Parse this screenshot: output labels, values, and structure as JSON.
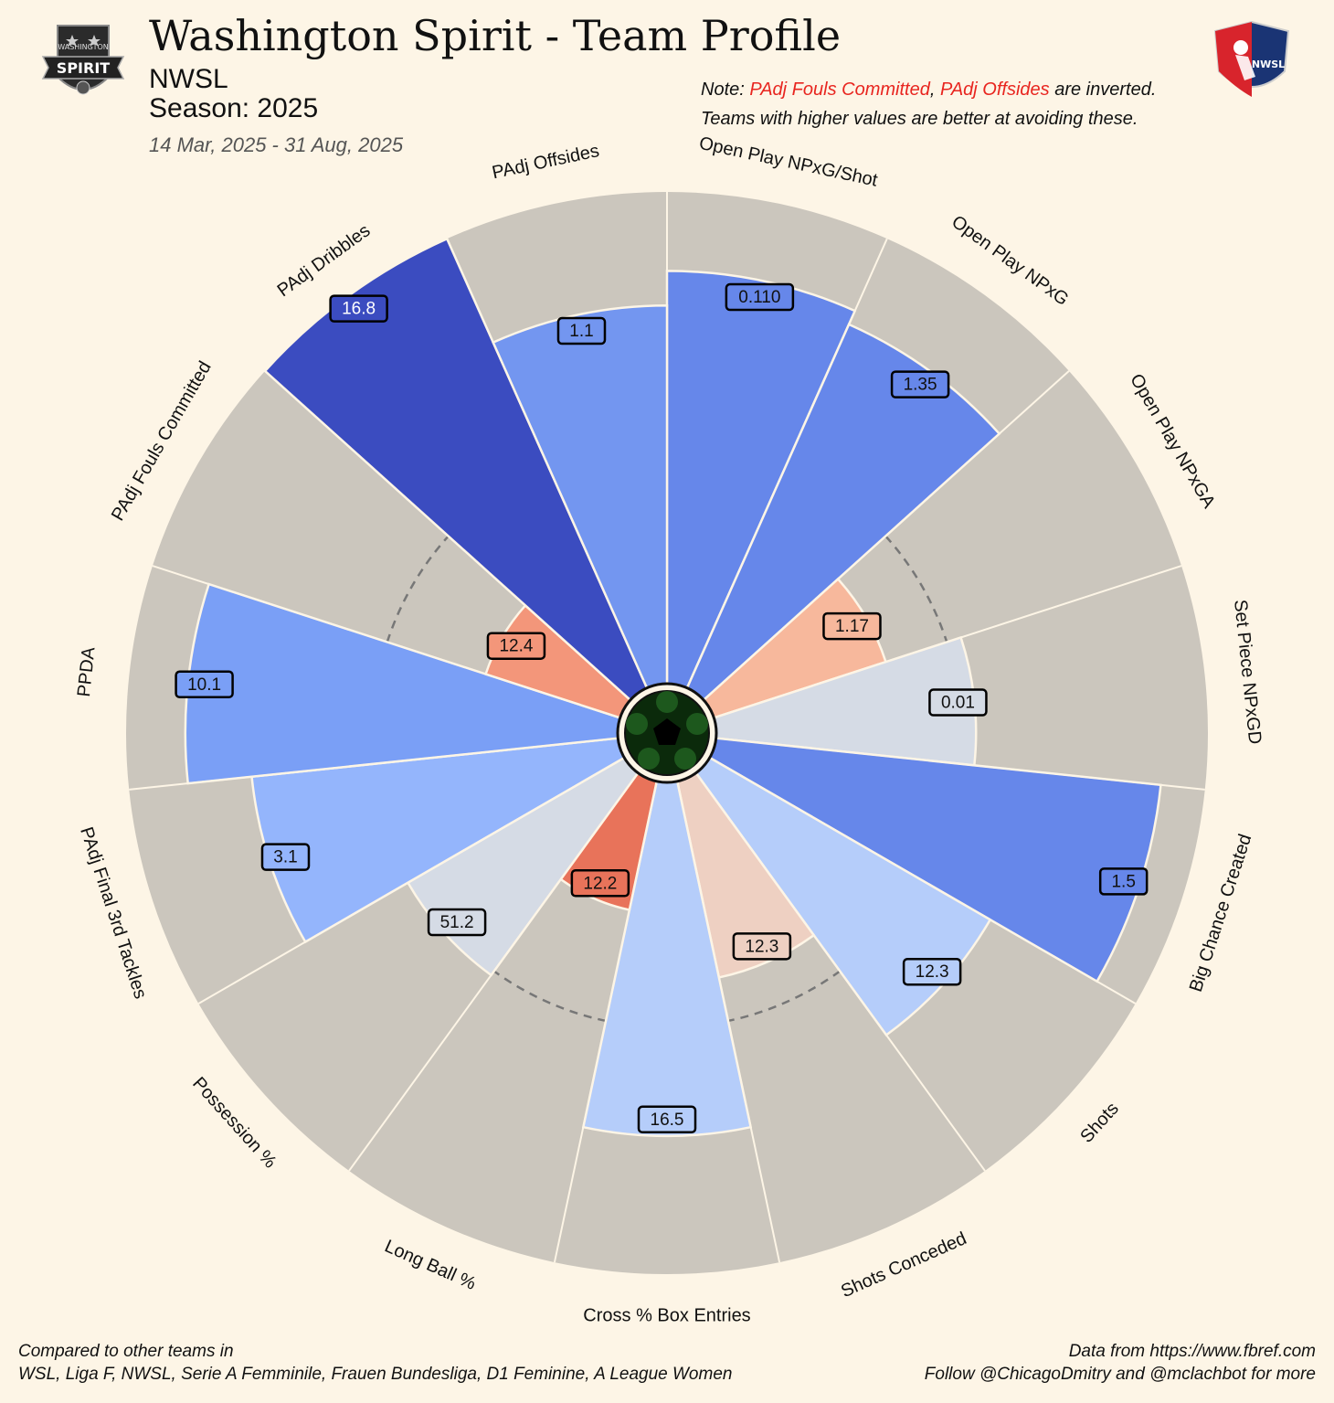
{
  "header": {
    "title": "Washington Spirit - Team Profile",
    "league": "NWSL",
    "season": "Season: 2025",
    "date_range": "14 Mar, 2025 - 31 Aug, 2025"
  },
  "note": {
    "prefix": "Note: ",
    "inverted_1": "PAdj Fouls Committed",
    "sep": ", ",
    "inverted_2": "PAdj Offsides",
    "suffix": " are inverted.",
    "line2": "Teams with higher values are better at avoiding these."
  },
  "footer": {
    "left_line1": "Compared to other teams in",
    "left_line2": "WSL, Liga F, NWSL, Serie A Femminile, Frauen Bundesliga, D1 Feminine, A League Women",
    "right_line1": "Data from https://www.fbref.com",
    "right_line2": "Follow @ChicagoDmitry and @mclachbot for more"
  },
  "logos": {
    "team_logo_text": "SPIRIT",
    "team_logo_subtext": "WASHINGTON",
    "league_logo_text": "NWSL"
  },
  "colors": {
    "background": "#fdf5e6",
    "slice_background": "#cbc6bd",
    "median_line": "#777777"
  },
  "chart_data": {
    "type": "pizza",
    "percentile_range": [
      0,
      100
    ],
    "start_angle_deg": 0,
    "direction": "clockwise",
    "median_reference_percentile": 50,
    "series": [
      {
        "metric": "Open Play NPxG/Shot",
        "value": "0.110",
        "percentile": 84,
        "color": "#6687ea"
      },
      {
        "metric": "Open Play NPxG",
        "value": "1.35",
        "percentile": 81,
        "color": "#6687ea"
      },
      {
        "metric": "Open Play NPxGA",
        "value": "1.17",
        "percentile": 37,
        "color": "#f7b89c"
      },
      {
        "metric": "Set Piece NPxGD",
        "value": "0.01",
        "percentile": 53,
        "color": "#d5dbe5"
      },
      {
        "metric": "Big Chance Created",
        "value": "1.5",
        "percentile": 91,
        "color": "#6687ea"
      },
      {
        "metric": "Shots",
        "value": "12.3",
        "percentile": 66,
        "color": "#b5cdfa"
      },
      {
        "metric": "Shots Conceded",
        "value": "12.3",
        "percentile": 41,
        "color": "#eed0c2"
      },
      {
        "metric": "Cross % Box Entries",
        "value": "16.5",
        "percentile": 72,
        "color": "#b5cdfa"
      },
      {
        "metric": "Long Ball %",
        "value": "12.2",
        "percentile": 27,
        "color": "#e8735a"
      },
      {
        "metric": "Possession %",
        "value": "51.2",
        "percentile": 51,
        "color": "#d5dbe5"
      },
      {
        "metric": "PAdj Final 3rd Tackles",
        "value": "3.1",
        "percentile": 75,
        "color": "#94b5fc"
      },
      {
        "metric": "PPDA",
        "value": "10.1",
        "percentile": 88,
        "color": "#7a9ff6"
      },
      {
        "metric": "PAdj Fouls Committed",
        "value": "12.4",
        "percentile": 29,
        "color": "#f3967a"
      },
      {
        "metric": "PAdj Dribbles",
        "value": "16.8",
        "percentile": 100,
        "color": "#3b4cc0"
      },
      {
        "metric": "PAdj Offsides",
        "value": "1.1",
        "percentile": 77,
        "color": "#7396f0"
      }
    ]
  }
}
